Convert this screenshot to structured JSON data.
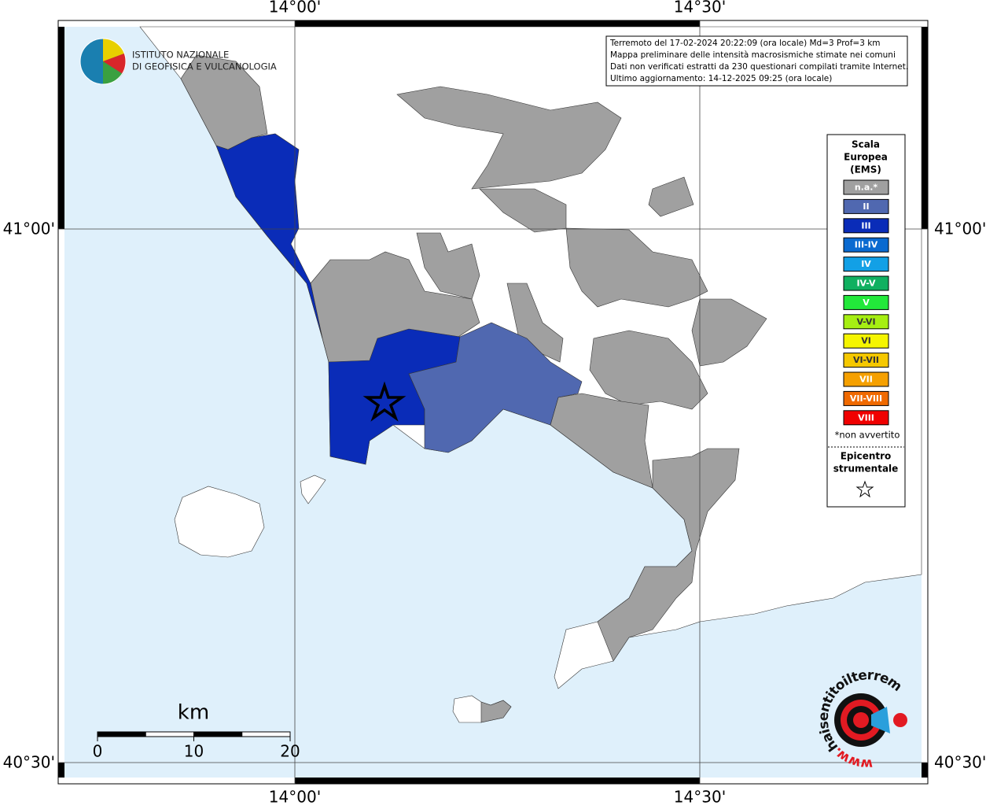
{
  "header": {
    "logo_lines": [
      "ISTITUTO NAZIONALE",
      "DI GEOFISICA E VULCANOLOGIA"
    ]
  },
  "info_box": {
    "lines": [
      "Terremoto del 17-02-2024 20:22:09 (ora locale) Md=3 Prof=3 km",
      "Mappa preliminare delle intensità macrosismiche stimate nei comuni",
      "Dati non verificati estratti da 230 questionari compilati tramite Internet.",
      "Ultimo aggiornamento: 14-12-2025 09:25 (ora locale)"
    ]
  },
  "legend": {
    "title_lines": [
      "Scala",
      "Europea",
      "(EMS)"
    ],
    "items": [
      {
        "label": "n.a.*",
        "color": "#a0a0a0"
      },
      {
        "label": "II",
        "color": "#5068b0"
      },
      {
        "label": "III",
        "color": "#0a2cb8"
      },
      {
        "label": "III-IV",
        "color": "#0a6ad0"
      },
      {
        "label": "IV",
        "color": "#12a0e6"
      },
      {
        "label": "IV-V",
        "color": "#10b060"
      },
      {
        "label": "V",
        "color": "#22e83a"
      },
      {
        "label": "V-VI",
        "color": "#a6ee12"
      },
      {
        "label": "VI",
        "color": "#f5f500"
      },
      {
        "label": "VI-VII",
        "color": "#f5c800"
      },
      {
        "label": "VII",
        "color": "#f5a000"
      },
      {
        "label": "VII-VIII",
        "color": "#f06a00"
      },
      {
        "label": "VIII",
        "color": "#f00000"
      }
    ],
    "note": "*non avvertito",
    "epicenter_lines": [
      "Epicentro",
      "strumentale"
    ]
  },
  "axes": {
    "longitude_labels": [
      "14°00'",
      "14°30'"
    ],
    "latitude_labels": [
      "41°00'",
      "40°30'"
    ]
  },
  "scale_bar": {
    "unit": "km",
    "labels": [
      "0",
      "10",
      "20"
    ]
  },
  "watermark": {
    "text": "haisentitoilterremoto.it",
    "prefix": "www."
  }
}
